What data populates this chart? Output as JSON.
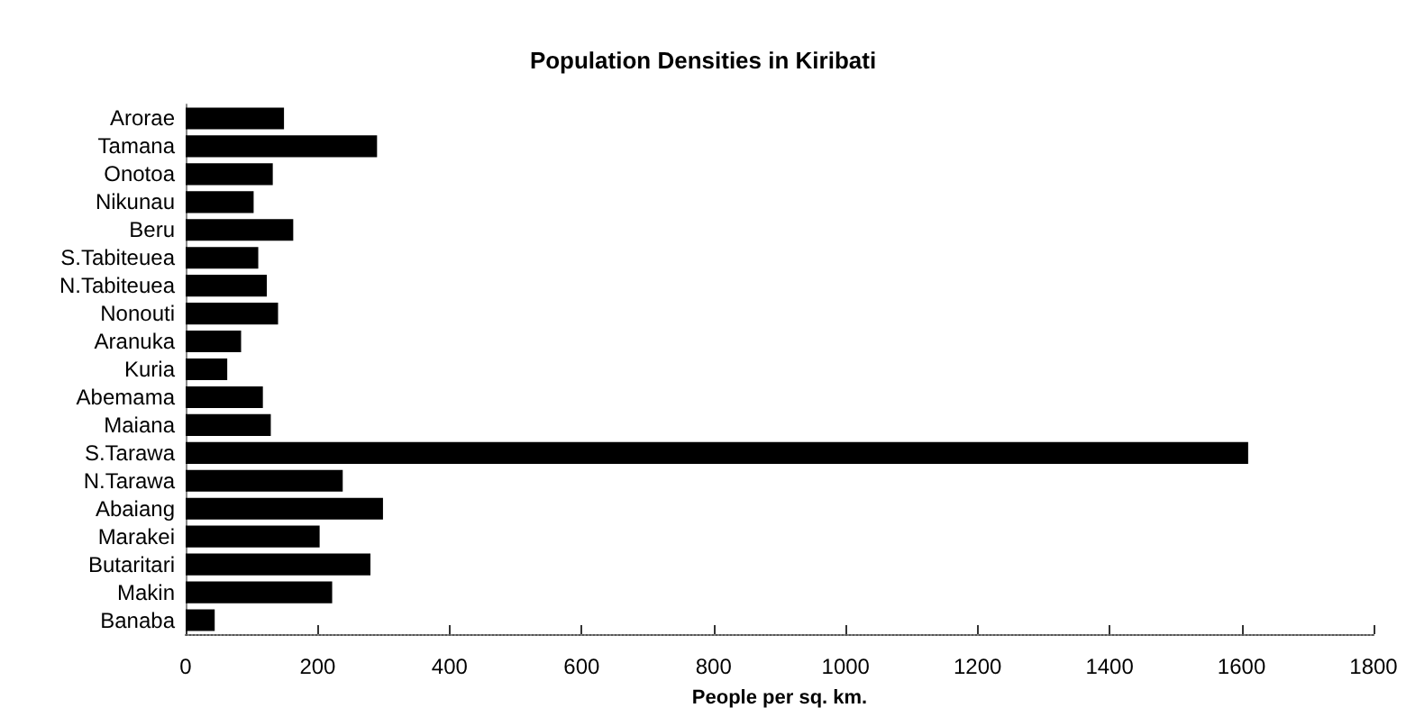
{
  "chart_data": {
    "type": "bar",
    "orientation": "horizontal",
    "title": "Population Densities in Kiribati",
    "xlabel": "People per sq. km.",
    "categories": [
      "Arorae",
      "Tamana",
      "Onotoa",
      "Nikunau",
      "Beru",
      "S.Tabiteuea",
      "N.Tabiteuea",
      "Nonouti",
      "Aranuka",
      "Kuria",
      "Abemama",
      "Maiana",
      "S.Tarawa",
      "N.Tarawa",
      "Abaiang",
      "Marakei",
      "Butaritari",
      "Makin",
      "Banaba"
    ],
    "values": [
      149,
      290,
      132,
      103,
      163,
      110,
      123,
      140,
      84,
      63,
      117,
      129,
      1610,
      238,
      299,
      203,
      280,
      222,
      44
    ],
    "color": "#000000",
    "xlim": [
      0,
      1800
    ],
    "xticks": [
      0,
      200,
      400,
      600,
      800,
      1000,
      1200,
      1400,
      1600,
      1800
    ]
  }
}
